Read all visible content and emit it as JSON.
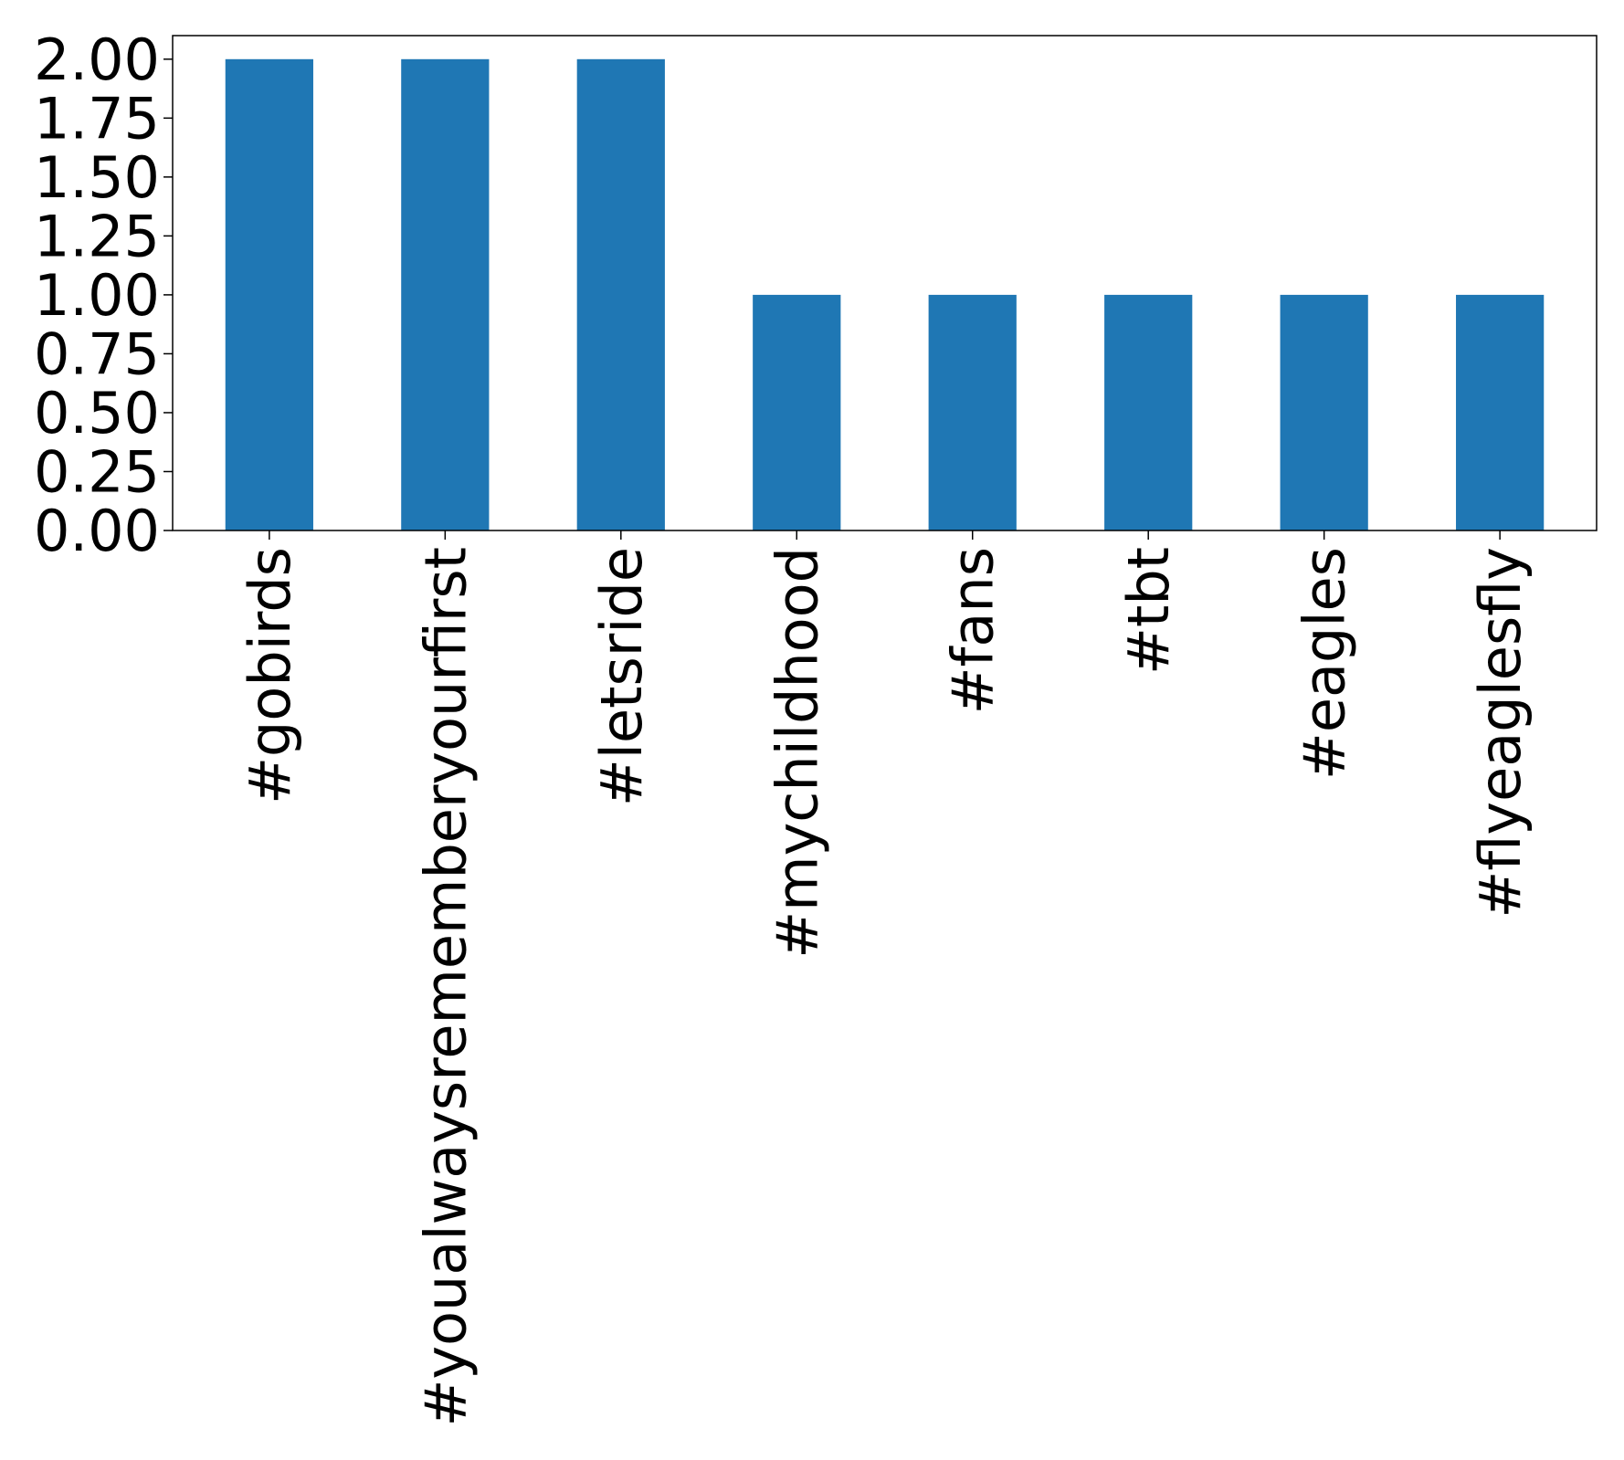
{
  "chart_data": {
    "type": "bar",
    "categories": [
      "#gobirds",
      "#youalwaysrememberyourfirst",
      "#letsride",
      "#mychildhood",
      "#fans",
      "#tbt",
      "#eagles",
      "#flyeaglesfly"
    ],
    "values": [
      2,
      2,
      2,
      1,
      1,
      1,
      1,
      1
    ],
    "title": "",
    "xlabel": "",
    "ylabel": "",
    "ylim": [
      0,
      2.1
    ],
    "yticks": [
      "0.00",
      "0.25",
      "0.50",
      "0.75",
      "1.00",
      "1.25",
      "1.50",
      "1.75",
      "2.00"
    ],
    "grid": false,
    "legend": "none",
    "bar_color": "#1f77b4"
  }
}
